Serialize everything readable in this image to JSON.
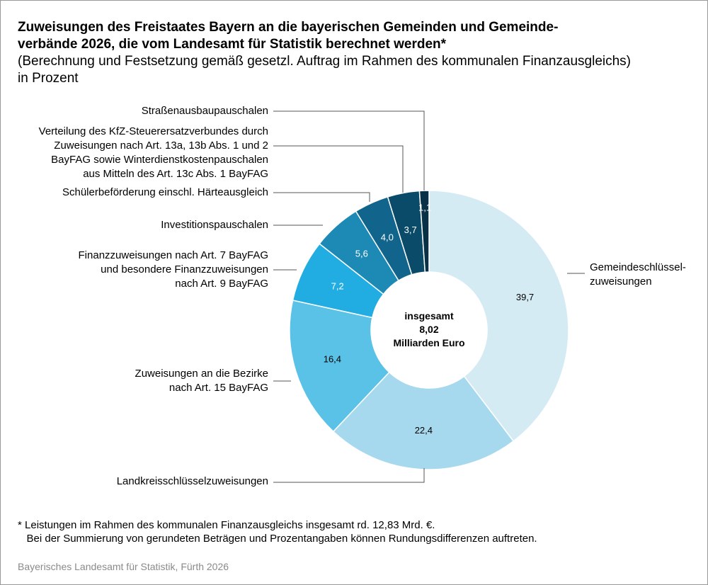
{
  "chart_data": {
    "type": "pie",
    "title": "Zuweisungen des Freistaates Bayern an die bayerischen Gemeinden und Gemeinde-\nverbände 2026, die vom Landesamt für Statistik berechnet werden*",
    "subtitle": "(Berechnung und Festsetzung gemäß gesetzl. Auftrag im Rahmen des kommunalen Finanzausgleichs)\nin Prozent",
    "center_label": "insgesamt\n8,02\nMilliarden Euro",
    "categories": [
      "Gemeindeschlüssel-\nzuweisungen",
      "Landkreisschlüsselzuweisungen",
      "Zuweisungen an die Bezirke\nnach Art. 15 BayFAG",
      "Finanzzuweisungen nach Art. 7 BayFAG\nund besondere Finanzzuweisungen\nnach Art. 9 BayFAG",
      "Investitionspauschalen",
      "Schülerbeförderung einschl. Härteausgleich",
      "Verteilung des KfZ-Steuerersatzverbundes durch\nZuweisungen nach Art. 13a, 13b Abs. 1 und 2\nBayFAG sowie Winterdienstkostenpauschalen\naus Mitteln des Art. 13c Abs. 1 BayFAG",
      "Straßenausbaupauschalen"
    ],
    "values": [
      39.7,
      22.4,
      16.4,
      7.2,
      5.6,
      4.0,
      3.7,
      1.1
    ],
    "value_labels": [
      "39,7",
      "22,4",
      "16,4",
      "7,2",
      "5,6",
      "4,0",
      "3,7",
      "1,1"
    ],
    "colors": [
      "#d5ebf3",
      "#a6d9ee",
      "#5bc2e7",
      "#22ade2",
      "#1d8ab5",
      "#11658c",
      "#0a4b69",
      "#083046"
    ],
    "footnote": "* Leistungen im Rahmen des kommunalen Finanzausgleichs insgesamt rd. 12,83 Mrd. €.\n   Bei der Summierung von gerundeten Beträgen und Prozentangaben können Rundungsdifferenzen auftreten.",
    "source": "Bayerisches Landesamt für Statistik, Fürth 2026"
  }
}
